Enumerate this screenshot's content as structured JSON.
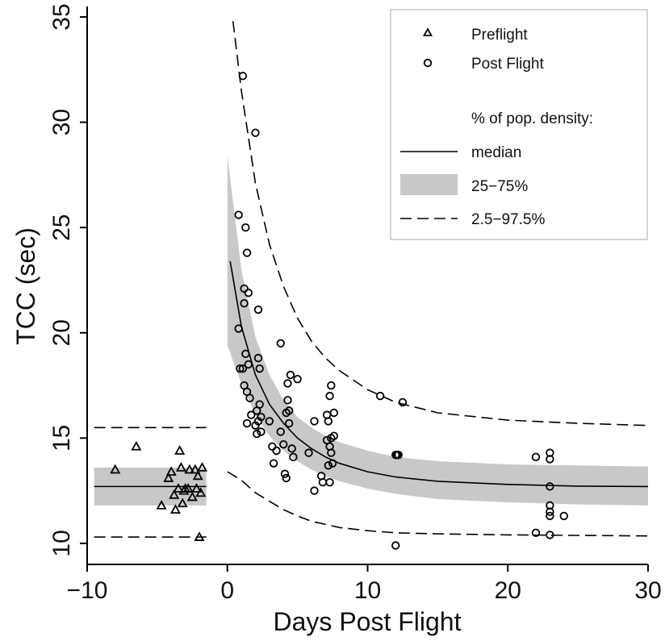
{
  "chart_data": {
    "type": "scatter",
    "xlabel": "Days Post Flight",
    "ylabel": "TCC (sec)",
    "xlim": [
      -10,
      30
    ],
    "ylim": [
      9,
      35.5
    ],
    "x_ticks": [
      -10,
      0,
      10,
      20,
      30
    ],
    "y_ticks": [
      10,
      15,
      20,
      25,
      30,
      35
    ],
    "x_tick_labels": [
      "−10",
      "0",
      "10",
      "20",
      "30"
    ],
    "y_tick_labels": [
      "10",
      "15",
      "20",
      "25",
      "30",
      "35"
    ],
    "grid": false,
    "legend_position": "top-right",
    "legend": {
      "preflight": "Preflight",
      "postflight": "Post Flight",
      "density_heading": "% of pop. density:",
      "median": "median",
      "iqr": "25−75%",
      "outer": "2.5−97.5%"
    },
    "colors": {
      "band": "#c8c8c8",
      "lines": "#000000"
    },
    "preflight": {
      "median": 12.7,
      "band_25_75": [
        11.8,
        13.6
      ],
      "band_2_5_97_5": [
        10.3,
        15.5
      ],
      "x_range": [
        -9.5,
        -1.5
      ],
      "points": [
        {
          "x": -8.0,
          "y": 13.5
        },
        {
          "x": -6.5,
          "y": 14.6
        },
        {
          "x": -4.7,
          "y": 11.8
        },
        {
          "x": -4.2,
          "y": 13.1
        },
        {
          "x": -4.0,
          "y": 13.4
        },
        {
          "x": -3.8,
          "y": 12.3
        },
        {
          "x": -3.7,
          "y": 11.6
        },
        {
          "x": -3.5,
          "y": 12.6
        },
        {
          "x": -3.4,
          "y": 14.4
        },
        {
          "x": -3.3,
          "y": 13.6
        },
        {
          "x": -3.2,
          "y": 11.9
        },
        {
          "x": -3.1,
          "y": 12.5
        },
        {
          "x": -3.0,
          "y": 12.6
        },
        {
          "x": -2.8,
          "y": 12.6
        },
        {
          "x": -2.7,
          "y": 13.5
        },
        {
          "x": -2.5,
          "y": 12.2
        },
        {
          "x": -2.3,
          "y": 13.5
        },
        {
          "x": -2.2,
          "y": 12.6
        },
        {
          "x": -2.1,
          "y": 13.2
        },
        {
          "x": -2.0,
          "y": 10.3
        },
        {
          "x": -1.9,
          "y": 12.4
        },
        {
          "x": -1.8,
          "y": 13.6
        }
      ]
    },
    "postflight": {
      "median_curve": [
        {
          "x": 0.2,
          "y": 23.4
        },
        {
          "x": 1,
          "y": 20.3
        },
        {
          "x": 2,
          "y": 18.0
        },
        {
          "x": 3,
          "y": 16.6
        },
        {
          "x": 4,
          "y": 15.7
        },
        {
          "x": 5,
          "y": 15.0
        },
        {
          "x": 6,
          "y": 14.5
        },
        {
          "x": 7,
          "y": 14.1
        },
        {
          "x": 8,
          "y": 13.8
        },
        {
          "x": 10,
          "y": 13.4
        },
        {
          "x": 12,
          "y": 13.15
        },
        {
          "x": 15,
          "y": 12.95
        },
        {
          "x": 20,
          "y": 12.8
        },
        {
          "x": 25,
          "y": 12.72
        },
        {
          "x": 30,
          "y": 12.7
        }
      ],
      "band_25_75_upper": [
        {
          "x": 0,
          "y": 28.4
        },
        {
          "x": 1,
          "y": 23.0
        },
        {
          "x": 2,
          "y": 19.8
        },
        {
          "x": 3,
          "y": 18.0
        },
        {
          "x": 4,
          "y": 16.8
        },
        {
          "x": 5,
          "y": 16.0
        },
        {
          "x": 6,
          "y": 15.5
        },
        {
          "x": 7,
          "y": 15.1
        },
        {
          "x": 8,
          "y": 14.8
        },
        {
          "x": 10,
          "y": 14.4
        },
        {
          "x": 12,
          "y": 14.1
        },
        {
          "x": 15,
          "y": 13.9
        },
        {
          "x": 20,
          "y": 13.75
        },
        {
          "x": 25,
          "y": 13.7
        },
        {
          "x": 30,
          "y": 13.65
        }
      ],
      "band_25_75_lower": [
        {
          "x": 0,
          "y": 19.4
        },
        {
          "x": 1,
          "y": 17.6
        },
        {
          "x": 2,
          "y": 16.1
        },
        {
          "x": 3,
          "y": 15.1
        },
        {
          "x": 4,
          "y": 14.4
        },
        {
          "x": 5,
          "y": 13.9
        },
        {
          "x": 6,
          "y": 13.5
        },
        {
          "x": 7,
          "y": 13.2
        },
        {
          "x": 8,
          "y": 12.95
        },
        {
          "x": 10,
          "y": 12.6
        },
        {
          "x": 12,
          "y": 12.35
        },
        {
          "x": 15,
          "y": 12.1
        },
        {
          "x": 20,
          "y": 11.95
        },
        {
          "x": 25,
          "y": 11.85
        },
        {
          "x": 30,
          "y": 11.8
        }
      ],
      "curve_97_5": [
        {
          "x": 0.4,
          "y": 34.8
        },
        {
          "x": 1,
          "y": 31.5
        },
        {
          "x": 2,
          "y": 27.1
        },
        {
          "x": 3,
          "y": 24.2
        },
        {
          "x": 4,
          "y": 22.2
        },
        {
          "x": 5,
          "y": 20.7
        },
        {
          "x": 6,
          "y": 19.6
        },
        {
          "x": 7,
          "y": 18.8
        },
        {
          "x": 8,
          "y": 18.2
        },
        {
          "x": 10,
          "y": 17.3
        },
        {
          "x": 12,
          "y": 16.7
        },
        {
          "x": 15,
          "y": 16.2
        },
        {
          "x": 20,
          "y": 15.85
        },
        {
          "x": 25,
          "y": 15.7
        },
        {
          "x": 30,
          "y": 15.6
        }
      ],
      "curve_2_5": [
        {
          "x": 0,
          "y": 13.4
        },
        {
          "x": 1,
          "y": 13.0
        },
        {
          "x": 2,
          "y": 12.4
        },
        {
          "x": 3,
          "y": 12.0
        },
        {
          "x": 4,
          "y": 11.6
        },
        {
          "x": 5,
          "y": 11.3
        },
        {
          "x": 6,
          "y": 11.05
        },
        {
          "x": 7,
          "y": 10.9
        },
        {
          "x": 8,
          "y": 10.75
        },
        {
          "x": 10,
          "y": 10.6
        },
        {
          "x": 12,
          "y": 10.5
        },
        {
          "x": 15,
          "y": 10.45
        },
        {
          "x": 20,
          "y": 10.4
        },
        {
          "x": 25,
          "y": 10.38
        },
        {
          "x": 30,
          "y": 10.35
        }
      ],
      "points": [
        {
          "x": 0.8,
          "y": 25.6
        },
        {
          "x": 0.8,
          "y": 20.2
        },
        {
          "x": 0.9,
          "y": 18.3
        },
        {
          "x": 1.1,
          "y": 32.2
        },
        {
          "x": 1.1,
          "y": 18.3
        },
        {
          "x": 1.2,
          "y": 22.1
        },
        {
          "x": 1.2,
          "y": 21.4
        },
        {
          "x": 1.2,
          "y": 17.5
        },
        {
          "x": 1.3,
          "y": 25.0
        },
        {
          "x": 1.3,
          "y": 19.0
        },
        {
          "x": 1.4,
          "y": 23.8
        },
        {
          "x": 1.4,
          "y": 17.2
        },
        {
          "x": 1.4,
          "y": 15.7
        },
        {
          "x": 1.5,
          "y": 21.9
        },
        {
          "x": 1.5,
          "y": 18.5
        },
        {
          "x": 1.6,
          "y": 16.9
        },
        {
          "x": 1.7,
          "y": 16.1
        },
        {
          "x": 2.0,
          "y": 29.5
        },
        {
          "x": 2.0,
          "y": 15.6
        },
        {
          "x": 2.1,
          "y": 16.3
        },
        {
          "x": 2.1,
          "y": 15.2
        },
        {
          "x": 2.2,
          "y": 21.1
        },
        {
          "x": 2.2,
          "y": 18.8
        },
        {
          "x": 2.2,
          "y": 15.8
        },
        {
          "x": 2.3,
          "y": 18.3
        },
        {
          "x": 2.3,
          "y": 16.6
        },
        {
          "x": 2.4,
          "y": 16.0
        },
        {
          "x": 2.4,
          "y": 15.3
        },
        {
          "x": 3.0,
          "y": 15.8
        },
        {
          "x": 3.2,
          "y": 14.6
        },
        {
          "x": 3.3,
          "y": 13.8
        },
        {
          "x": 3.5,
          "y": 14.4
        },
        {
          "x": 3.8,
          "y": 19.5
        },
        {
          "x": 3.8,
          "y": 15.3
        },
        {
          "x": 4.0,
          "y": 14.7
        },
        {
          "x": 4.1,
          "y": 13.3
        },
        {
          "x": 4.2,
          "y": 16.2
        },
        {
          "x": 4.2,
          "y": 13.1
        },
        {
          "x": 4.3,
          "y": 17.6
        },
        {
          "x": 4.3,
          "y": 16.8
        },
        {
          "x": 4.4,
          "y": 16.3
        },
        {
          "x": 4.4,
          "y": 15.7
        },
        {
          "x": 4.5,
          "y": 18.0
        },
        {
          "x": 4.6,
          "y": 14.5
        },
        {
          "x": 4.7,
          "y": 14.1
        },
        {
          "x": 5.0,
          "y": 17.8
        },
        {
          "x": 5.8,
          "y": 14.3
        },
        {
          "x": 6.2,
          "y": 15.8
        },
        {
          "x": 6.2,
          "y": 12.5
        },
        {
          "x": 6.7,
          "y": 13.2
        },
        {
          "x": 6.8,
          "y": 12.9
        },
        {
          "x": 7.1,
          "y": 16.1
        },
        {
          "x": 7.1,
          "y": 14.9
        },
        {
          "x": 7.2,
          "y": 15.8
        },
        {
          "x": 7.2,
          "y": 13.7
        },
        {
          "x": 7.3,
          "y": 17.0
        },
        {
          "x": 7.3,
          "y": 14.6
        },
        {
          "x": 7.3,
          "y": 12.9
        },
        {
          "x": 7.4,
          "y": 17.5
        },
        {
          "x": 7.4,
          "y": 15.0
        },
        {
          "x": 7.4,
          "y": 14.3
        },
        {
          "x": 7.5,
          "y": 13.8
        },
        {
          "x": 7.6,
          "y": 16.2
        },
        {
          "x": 7.6,
          "y": 15.1
        },
        {
          "x": 10.9,
          "y": 17.0
        },
        {
          "x": 12.0,
          "y": 14.2
        },
        {
          "x": 12.0,
          "y": 9.9
        },
        {
          "x": 12.1,
          "y": 14.2
        },
        {
          "x": 12.2,
          "y": 14.2
        },
        {
          "x": 12.5,
          "y": 16.7
        },
        {
          "x": 22.0,
          "y": 14.1
        },
        {
          "x": 22.0,
          "y": 10.5
        },
        {
          "x": 23.0,
          "y": 14.3
        },
        {
          "x": 23.0,
          "y": 14.0
        },
        {
          "x": 23.0,
          "y": 12.7
        },
        {
          "x": 23.0,
          "y": 11.8
        },
        {
          "x": 23.0,
          "y": 11.5
        },
        {
          "x": 23.0,
          "y": 11.3
        },
        {
          "x": 23.0,
          "y": 10.4
        },
        {
          "x": 24.0,
          "y": 11.3
        }
      ]
    }
  }
}
